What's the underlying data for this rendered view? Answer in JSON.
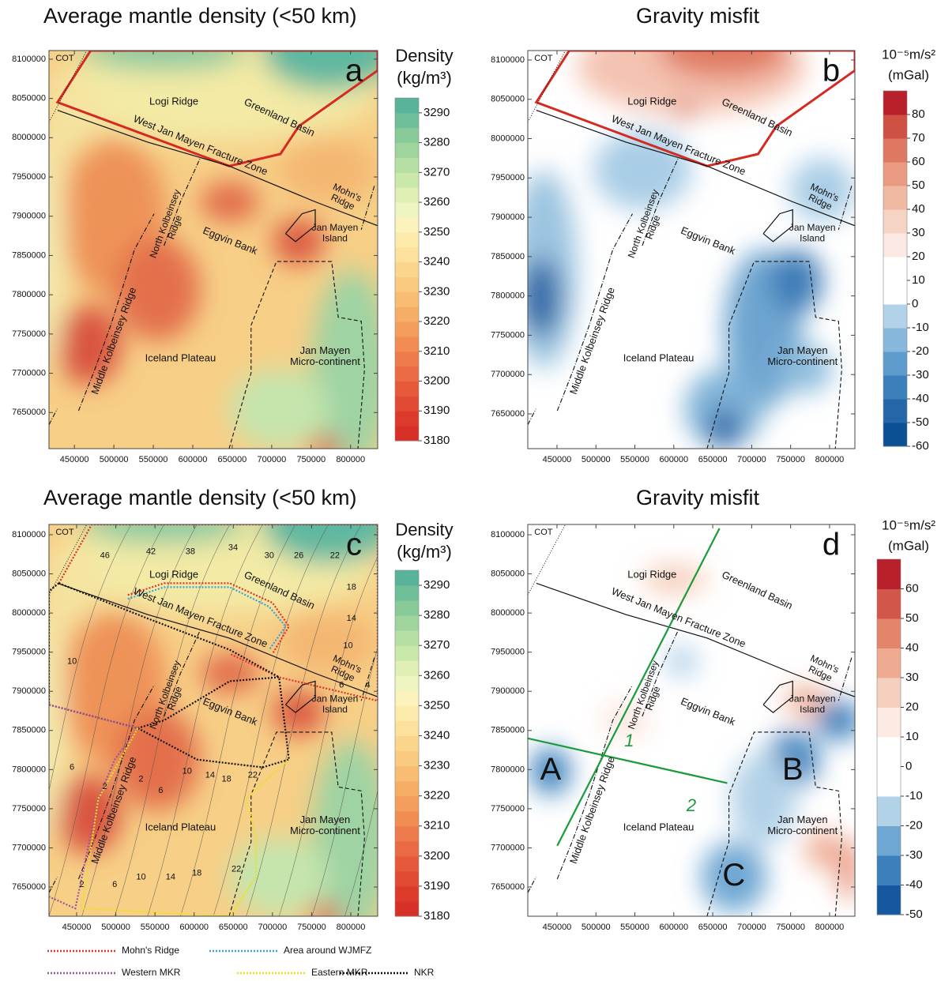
{
  "panels": [
    {
      "title": "Average mantle density (<50 km)",
      "letter": "a",
      "xlim": [
        417800,
        834300
      ],
      "ylim": [
        7604000,
        8111000
      ],
      "xticks": [
        450000,
        500000,
        550000,
        600000,
        650000,
        700000,
        750000,
        800000
      ],
      "yticks": [
        7650000,
        7700000,
        7750000,
        7800000,
        7850000,
        7900000,
        7950000,
        8000000,
        8050000,
        8100000
      ],
      "colorbar": {
        "label": [
          "Density",
          "(kg/m³)"
        ],
        "lim": [
          3180,
          3295
        ],
        "ticks": [
          3290,
          3280,
          3270,
          3260,
          3250,
          3240,
          3230,
          3220,
          3210,
          3200,
          3190,
          3180
        ],
        "colors": [
          "#d73027",
          "#dc3b2c",
          "#e14a33",
          "#e65a3b",
          "#ea6a43",
          "#ee7b4b",
          "#f18d53",
          "#f49e5d",
          "#f6ae67",
          "#f8bd72",
          "#f9ca7f",
          "#fad68d",
          "#fbe19b",
          "#fcebab",
          "#fbf3bb",
          "#eef5c0",
          "#e0f0b5",
          "#cbe8ab",
          "#b5dfa3",
          "#9fd59d",
          "#88ca98",
          "#6fbf98",
          "#59b39a"
        ]
      },
      "labels": [
        [
          "COT"
        ],
        [
          "Logi Ridge"
        ],
        [
          "Greenland Basin"
        ],
        [
          "West Jan Mayen Fracture Zone"
        ],
        [
          "Mohn's",
          "Ridge"
        ],
        [
          "North Kolbeinsey",
          "Ridge"
        ],
        [
          "Eggvin Bank"
        ],
        [
          "Jan Mayen",
          "Island"
        ],
        [
          "Middle Kolbeinsey Ridge"
        ],
        [
          "Iceland Plateau"
        ],
        [
          "Jan Mayen",
          "Micro-continent"
        ]
      ]
    },
    {
      "title": "Gravity misfit",
      "letter": "b",
      "xlim": [
        412500,
        832500
      ],
      "ylim": [
        7605800,
        8112000
      ],
      "xticks": [
        450000,
        500000,
        550000,
        600000,
        650000,
        700000,
        750000,
        800000
      ],
      "yticks": [
        7650000,
        7700000,
        7750000,
        7800000,
        7850000,
        7900000,
        7950000,
        8000000,
        8050000,
        8100000
      ],
      "colorbar": {
        "label": [
          "10⁻⁵m/s²",
          "(mGal)"
        ],
        "lim": [
          -60,
          90
        ],
        "ticks": [
          80,
          70,
          60,
          50,
          40,
          30,
          20,
          10,
          0,
          -10,
          -20,
          -30,
          -40,
          -50,
          -60
        ],
        "colors": [
          "#0b4f95",
          "#2466a8",
          "#3b80bb",
          "#5d9ccc",
          "#87b8dc",
          "#b2d2e8",
          "#ffffff",
          "#ffffff",
          "#fbe9e3",
          "#f6d4c4",
          "#f0b9a2",
          "#e99a80",
          "#de7860",
          "#cf5144",
          "#b8202b"
        ]
      },
      "labels": [
        [
          "COT"
        ],
        [
          "Logi Ridge"
        ],
        [
          "Greenland Basin"
        ],
        [
          "West Jan Mayen Fracture Zone"
        ],
        [
          "Mohn's",
          "Ridge"
        ],
        [
          "North Kolbeinsey",
          "Ridge"
        ],
        [
          "Eggvin Bank"
        ],
        [
          "Jan Mayen",
          "Island"
        ],
        [
          "Middle Kolbeinsey Ridge"
        ],
        [
          "Iceland Plateau"
        ],
        [
          "Jan Mayen",
          "Micro-continent"
        ]
      ]
    },
    {
      "title": "Average mantle density (<50 km)",
      "letter": "c",
      "xlim": [
        414700,
        834300
      ],
      "ylim": [
        7612700,
        8113100
      ],
      "xticks": [
        450000,
        500000,
        550000,
        600000,
        650000,
        700000,
        750000,
        800000
      ],
      "yticks": [
        7650000,
        7700000,
        7750000,
        7800000,
        7850000,
        7900000,
        7950000,
        8000000,
        8050000,
        8100000
      ],
      "colorbar": {
        "label": [
          "Density",
          "(kg/m³)"
        ],
        "lim": [
          3180,
          3295
        ],
        "ticks": [
          3290,
          3280,
          3270,
          3260,
          3250,
          3240,
          3230,
          3220,
          3210,
          3200,
          3190,
          3180
        ],
        "colors": [
          "#d73027",
          "#dc3b2c",
          "#e14a33",
          "#e65a3b",
          "#ea6a43",
          "#ee7b4b",
          "#f18d53",
          "#f49e5d",
          "#f6ae67",
          "#f8bd72",
          "#f9ca7f",
          "#fad68d",
          "#fbe19b",
          "#fcebab",
          "#fbf3bb",
          "#eef5c0",
          "#e0f0b5",
          "#cbe8ab",
          "#b5dfa3",
          "#9fd59d",
          "#88ca98",
          "#6fbf98",
          "#59b39a"
        ]
      },
      "labels": [
        [
          "COT"
        ],
        [
          "Logi Ridge"
        ],
        [
          "Greenland Basin"
        ],
        [
          "West Jan Mayen Fracture Zone"
        ],
        [
          "Mohn's",
          "Ridge"
        ],
        [
          "North Kolbeinsey",
          "Ridge"
        ],
        [
          "Eggvin Bank"
        ],
        [
          "Jan Mayen",
          "Island"
        ],
        [
          "Middle Kolbeinsey Ridge"
        ],
        [
          "Iceland Plateau"
        ],
        [
          "Jan Mayen",
          "Micro-continent"
        ]
      ],
      "contour_labels": [
        46,
        42,
        38,
        34,
        30,
        26,
        22,
        18,
        14,
        10,
        6,
        4,
        10,
        6,
        2,
        2,
        6,
        10,
        14,
        18,
        22,
        2,
        6,
        10,
        14,
        18,
        22
      ]
    },
    {
      "title": "Gravity misfit",
      "letter": "d",
      "xlim": [
        412500,
        832500
      ],
      "ylim": [
        7612700,
        8113100
      ],
      "xticks": [
        450000,
        500000,
        550000,
        600000,
        650000,
        700000,
        750000,
        800000
      ],
      "yticks": [
        7650000,
        7700000,
        7750000,
        7800000,
        7850000,
        7900000,
        7950000,
        8000000,
        8050000,
        8100000
      ],
      "colorbar": {
        "label": [
          "10⁻⁵m/s²",
          "(mGal)"
        ],
        "lim": [
          -50,
          70
        ],
        "ticks": [
          60,
          50,
          40,
          30,
          20,
          10,
          0,
          -10,
          -20,
          -30,
          -40,
          -50
        ],
        "colors": [
          "#1558a0",
          "#3b80bb",
          "#6fa7d3",
          "#b2d2e8",
          "#ffffff",
          "#ffffff",
          "#fcebe2",
          "#f6d0be",
          "#eeab91",
          "#e3856a",
          "#d2574a",
          "#b8202b"
        ]
      },
      "labels": [
        [
          "COT"
        ],
        [
          "Logi Ridge"
        ],
        [
          "Greenland Basin"
        ],
        [
          "West Jan Mayen Fracture Zone"
        ],
        [
          "Mohn's",
          "Ridge"
        ],
        [
          "North Kolbeinsey",
          "Ridge"
        ],
        [
          "Eggvin Bank"
        ],
        [
          "Jan Mayen",
          "Island"
        ],
        [
          "Middle Kolbeinsey Ridge"
        ],
        [
          "Iceland Plateau"
        ],
        [
          "Jan Mayen",
          "Micro-continent"
        ]
      ],
      "profiles": [
        "1",
        "2"
      ],
      "anomalies": [
        "A",
        "B",
        "C"
      ]
    }
  ],
  "legend": [
    {
      "name": "Mohn's Ridge",
      "color": "#e0302a"
    },
    {
      "name": "Area around WJMFZ",
      "color": "#3a9fd8"
    },
    {
      "name": "Western MKR",
      "color": "#a0509c"
    },
    {
      "name": "Eastern MKR",
      "color": "#ece020"
    },
    {
      "name": "NKR",
      "color": "#111111"
    }
  ]
}
